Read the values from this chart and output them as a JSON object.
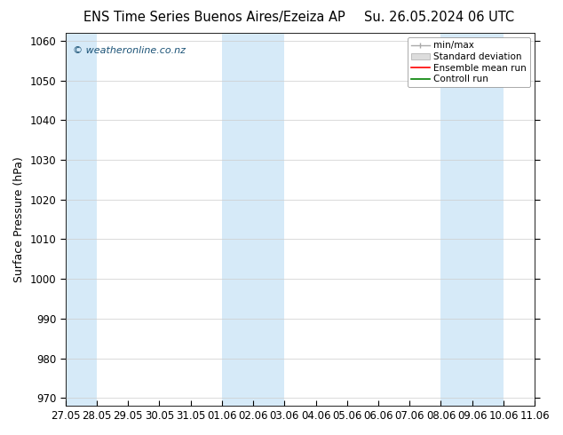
{
  "title_left": "ENS Time Series Buenos Aires/Ezeiza AP",
  "title_right": "Su. 26.05.2024 06 UTC",
  "ylabel": "Surface Pressure (hPa)",
  "ylim": [
    968,
    1062
  ],
  "yticks": [
    970,
    980,
    990,
    1000,
    1010,
    1020,
    1030,
    1040,
    1050,
    1060
  ],
  "xtick_labels": [
    "27.05",
    "28.05",
    "29.05",
    "30.05",
    "31.05",
    "01.06",
    "02.06",
    "03.06",
    "04.06",
    "05.06",
    "06.06",
    "07.06",
    "08.06",
    "09.06",
    "10.06",
    "11.06"
  ],
  "watermark": "© weatheronline.co.nz",
  "band_color": "#d6eaf8",
  "background_color": "#ffffff",
  "legend_items": [
    "min/max",
    "Standard deviation",
    "Ensemble mean run",
    "Controll run"
  ],
  "legend_colors": [
    "#aaaaaa",
    "#cccccc",
    "#ff0000",
    "#008000"
  ],
  "title_fontsize": 10.5,
  "ylabel_fontsize": 9,
  "tick_fontsize": 8.5,
  "shaded": [
    true,
    false,
    false,
    false,
    false,
    true,
    true,
    false,
    false,
    false,
    false,
    false,
    true,
    true,
    false,
    false
  ]
}
